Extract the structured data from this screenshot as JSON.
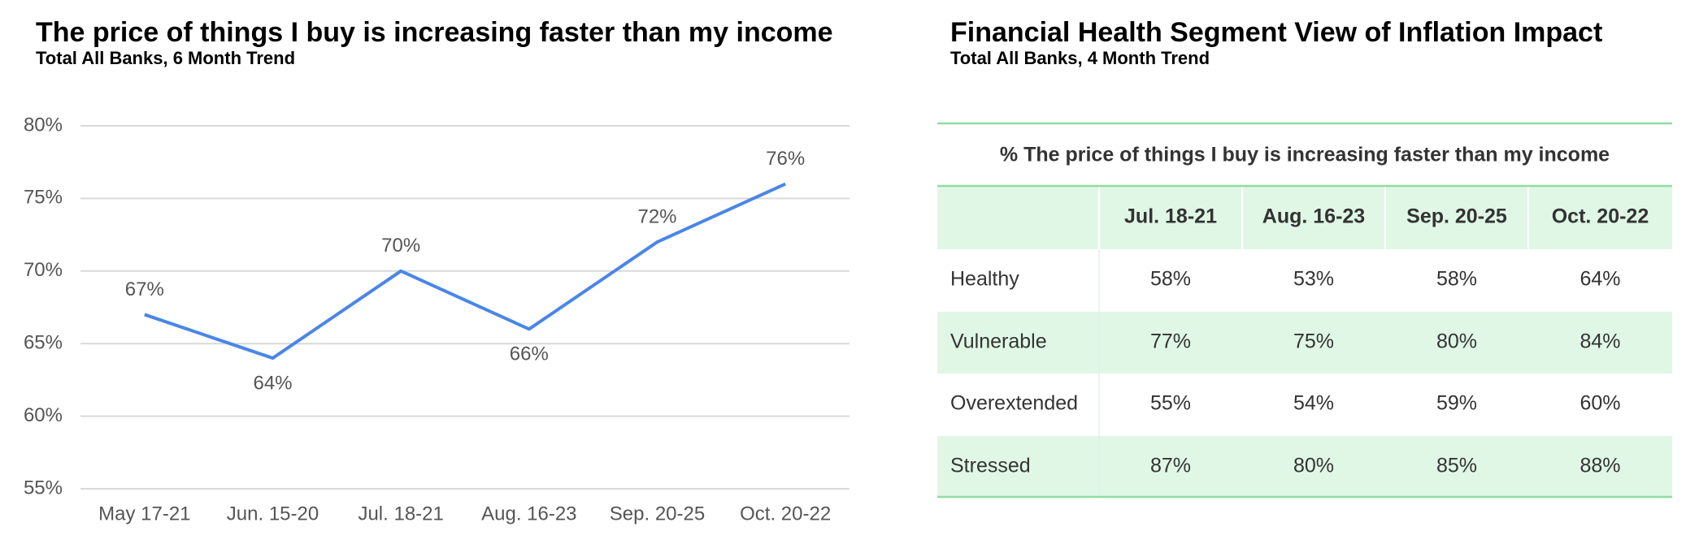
{
  "chart_data": {
    "type": "line",
    "title": "The price of things I buy is increasing faster than my income",
    "subtitle": "Total All Banks, 6 Month Trend",
    "categories": [
      "May 17-21",
      "Jun. 15-20",
      "Jul. 18-21",
      "Aug. 16-23",
      "Sep. 20-25",
      "Oct. 20-22"
    ],
    "values": [
      67,
      64,
      70,
      66,
      72,
      76
    ],
    "value_labels": [
      "67%",
      "64%",
      "70%",
      "66%",
      "72%",
      "76%"
    ],
    "color": "#4a86e8",
    "ylim": [
      55,
      80
    ],
    "yticks": [
      {
        "value": 55,
        "label": "55%"
      },
      {
        "value": 60,
        "label": "60%"
      },
      {
        "value": 65,
        "label": "65%"
      },
      {
        "value": 70,
        "label": "70%"
      },
      {
        "value": 75,
        "label": "75%"
      },
      {
        "value": 80,
        "label": "80%"
      }
    ],
    "grid": true
  },
  "table": {
    "title": "Financial Health Segment View of Inflation Impact",
    "subtitle": "Total All Banks, 4 Month Trend",
    "caption": "% The price of things I buy is increasing faster than my income",
    "columns": [
      "Jul. 18-21",
      "Aug. 16-23",
      "Sep. 20-25",
      "Oct. 20-22"
    ],
    "rows": [
      [
        "Healthy",
        "58%",
        "53%",
        "58%",
        "64%"
      ],
      [
        "Vulnerable",
        "77%",
        "75%",
        "80%",
        "84%"
      ],
      [
        "Overextended",
        "55%",
        "54%",
        "59%",
        "60%"
      ],
      [
        "Stressed",
        "87%",
        "80%",
        "85%",
        "88%"
      ]
    ]
  }
}
